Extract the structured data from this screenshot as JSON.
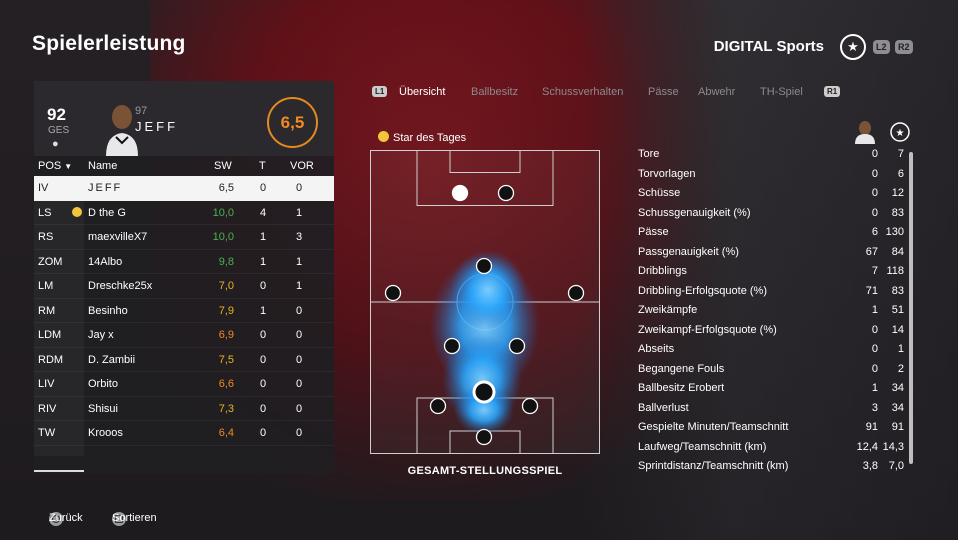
{
  "header": {
    "title": "Spielerleistung",
    "brand": "DIGITAL Sports",
    "l2": "L2",
    "r2": "R2"
  },
  "player": {
    "overall": "92",
    "overall_label": "GES",
    "rating_small": "97",
    "name": "JEFF",
    "match_rating": "6,5"
  },
  "table": {
    "headers": {
      "pos": "POS",
      "name": "Name",
      "sw": "SW",
      "t": "T",
      "vor": "VOR"
    },
    "rows": [
      {
        "pos": "IV",
        "name": "JEFF",
        "sw": "6,5",
        "t": "0",
        "vor": "0",
        "sw_color": "#222222",
        "selected": true
      },
      {
        "pos": "LS",
        "name": "D the G",
        "sw": "10,0",
        "t": "4",
        "vor": "1",
        "sw_color": "#4caf50",
        "star": true
      },
      {
        "pos": "RS",
        "name": "maexvilleX7",
        "sw": "10,0",
        "t": "1",
        "vor": "3",
        "sw_color": "#4caf50"
      },
      {
        "pos": "ZOM",
        "name": "14Albo",
        "sw": "9,8",
        "t": "1",
        "vor": "1",
        "sw_color": "#4caf50"
      },
      {
        "pos": "LM",
        "name": "Dreschke25x",
        "sw": "7,0",
        "t": "0",
        "vor": "1",
        "sw_color": "#e8b51e"
      },
      {
        "pos": "RM",
        "name": "Besinho",
        "sw": "7,9",
        "t": "1",
        "vor": "0",
        "sw_color": "#e8b51e"
      },
      {
        "pos": "LDM",
        "name": "Jay x",
        "sw": "6,9",
        "t": "0",
        "vor": "0",
        "sw_color": "#f08a24"
      },
      {
        "pos": "RDM",
        "name": "D. Zambii",
        "sw": "7,5",
        "t": "0",
        "vor": "0",
        "sw_color": "#e8b51e"
      },
      {
        "pos": "LIV",
        "name": "Orbito",
        "sw": "6,6",
        "t": "0",
        "vor": "0",
        "sw_color": "#f08a24"
      },
      {
        "pos": "RIV",
        "name": "Shisui",
        "sw": "7,3",
        "t": "0",
        "vor": "0",
        "sw_color": "#e8b51e"
      },
      {
        "pos": "TW",
        "name": "Krooos",
        "sw": "6,4",
        "t": "0",
        "vor": "0",
        "sw_color": "#f08a24"
      }
    ]
  },
  "tabs": {
    "l1": "L1",
    "r1": "R1",
    "items": [
      "Übersicht",
      "Ballbesitz",
      "Schussverhalten",
      "Pässe",
      "Abwehr",
      "TH-Spiel"
    ]
  },
  "pitch": {
    "star_title": "Star des Tages",
    "caption": "GESAMT-STELLUNGSSPIEL"
  },
  "stats": [
    {
      "label": "Tore",
      "a": "0",
      "b": "7"
    },
    {
      "label": "Torvorlagen",
      "a": "0",
      "b": "6"
    },
    {
      "label": "Schüsse",
      "a": "0",
      "b": "12"
    },
    {
      "label": "Schussgenauigkeit (%)",
      "a": "0",
      "b": "83"
    },
    {
      "label": "Pässe",
      "a": "6",
      "b": "130"
    },
    {
      "label": "Passgenauigkeit (%)",
      "a": "67",
      "b": "84"
    },
    {
      "label": "Dribblings",
      "a": "7",
      "b": "118"
    },
    {
      "label": "Dribbling-Erfolgsquote (%)",
      "a": "71",
      "b": "83"
    },
    {
      "label": "Zweikämpfe",
      "a": "1",
      "b": "51"
    },
    {
      "label": "Zweikampf-Erfolgsquote (%)",
      "a": "0",
      "b": "14"
    },
    {
      "label": "Abseits",
      "a": "0",
      "b": "1"
    },
    {
      "label": "Begangene Fouls",
      "a": "0",
      "b": "2"
    },
    {
      "label": "Ballbesitz Erobert",
      "a": "1",
      "b": "34"
    },
    {
      "label": "Ballverlust",
      "a": "3",
      "b": "34"
    },
    {
      "label": "Gespielte Minuten/Teamschnitt",
      "a": "91",
      "b": "91"
    },
    {
      "label": "Laufweg/Teamschnitt (km)",
      "a": "12,4",
      "b": "14,3"
    },
    {
      "label": "Sprintdistanz/Teamschnitt (km)",
      "a": "3,8",
      "b": "7,0"
    }
  ],
  "footer": {
    "back": "Zurück",
    "sort": "Sortieren"
  },
  "colors": {
    "accent": "#f08a24",
    "heat": "#2aa8ff"
  }
}
